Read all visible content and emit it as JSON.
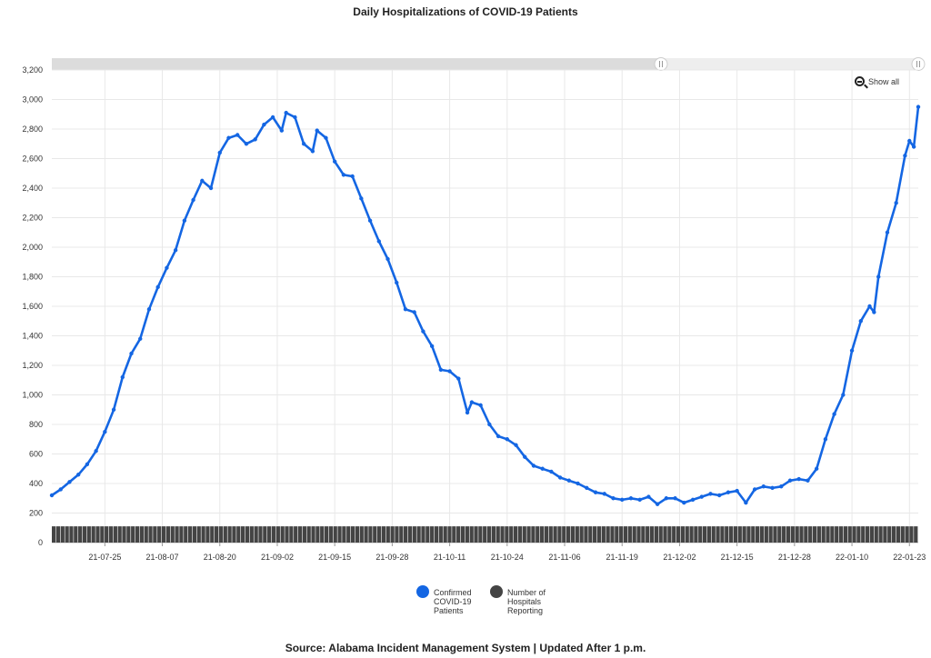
{
  "title": "Daily Hospitalizations of COVID-19 Patients",
  "source": "Source: Alabama Incident Management System | Updated After 1 p.m.",
  "show_all_label": "Show all",
  "colors": {
    "confirmed": "#1466e3",
    "hospitals": "#444444",
    "grid": "#e8e8e8",
    "scrollbar": "#dcdcdc"
  },
  "chart_data": {
    "type": "line",
    "x_start": "2021-07-13",
    "x_end": "2022-01-25",
    "ylim": [
      0,
      3200
    ],
    "y_ticks": [
      "0",
      "200",
      "400",
      "600",
      "800",
      "1,000",
      "1,200",
      "1,400",
      "1,600",
      "1,800",
      "2,000",
      "2,200",
      "2,400",
      "2,600",
      "2,800",
      "3,000",
      "3,200"
    ],
    "x_ticks": [
      "21-07-25",
      "21-08-07",
      "21-08-20",
      "21-09-02",
      "21-09-15",
      "21-09-28",
      "21-10-11",
      "21-10-24",
      "21-11-06",
      "21-11-19",
      "21-12-02",
      "21-12-15",
      "21-12-28",
      "22-01-10",
      "22-01-23"
    ],
    "grid": true,
    "legend_position": "bottom",
    "series": [
      {
        "name": "Confirmed COVID-19 Patients",
        "kind": "line",
        "points": [
          [
            "2021-07-13",
            320
          ],
          [
            "2021-07-15",
            360
          ],
          [
            "2021-07-17",
            410
          ],
          [
            "2021-07-19",
            460
          ],
          [
            "2021-07-21",
            530
          ],
          [
            "2021-07-23",
            620
          ],
          [
            "2021-07-25",
            750
          ],
          [
            "2021-07-27",
            900
          ],
          [
            "2021-07-29",
            1120
          ],
          [
            "2021-07-31",
            1280
          ],
          [
            "2021-08-02",
            1380
          ],
          [
            "2021-08-04",
            1580
          ],
          [
            "2021-08-06",
            1730
          ],
          [
            "2021-08-08",
            1860
          ],
          [
            "2021-08-10",
            1980
          ],
          [
            "2021-08-12",
            2180
          ],
          [
            "2021-08-14",
            2320
          ],
          [
            "2021-08-16",
            2450
          ],
          [
            "2021-08-18",
            2400
          ],
          [
            "2021-08-20",
            2640
          ],
          [
            "2021-08-22",
            2740
          ],
          [
            "2021-08-24",
            2760
          ],
          [
            "2021-08-26",
            2700
          ],
          [
            "2021-08-28",
            2730
          ],
          [
            "2021-08-30",
            2830
          ],
          [
            "2021-09-01",
            2880
          ],
          [
            "2021-09-03",
            2790
          ],
          [
            "2021-09-04",
            2910
          ],
          [
            "2021-09-06",
            2880
          ],
          [
            "2021-09-08",
            2700
          ],
          [
            "2021-09-10",
            2650
          ],
          [
            "2021-09-11",
            2790
          ],
          [
            "2021-09-13",
            2740
          ],
          [
            "2021-09-15",
            2580
          ],
          [
            "2021-09-17",
            2490
          ],
          [
            "2021-09-19",
            2480
          ],
          [
            "2021-09-21",
            2330
          ],
          [
            "2021-09-23",
            2180
          ],
          [
            "2021-09-25",
            2040
          ],
          [
            "2021-09-27",
            1920
          ],
          [
            "2021-09-29",
            1760
          ],
          [
            "2021-10-01",
            1580
          ],
          [
            "2021-10-03",
            1560
          ],
          [
            "2021-10-05",
            1430
          ],
          [
            "2021-10-07",
            1330
          ],
          [
            "2021-10-09",
            1170
          ],
          [
            "2021-10-11",
            1160
          ],
          [
            "2021-10-13",
            1110
          ],
          [
            "2021-10-15",
            880
          ],
          [
            "2021-10-16",
            950
          ],
          [
            "2021-10-18",
            930
          ],
          [
            "2021-10-20",
            800
          ],
          [
            "2021-10-22",
            720
          ],
          [
            "2021-10-24",
            700
          ],
          [
            "2021-10-26",
            660
          ],
          [
            "2021-10-28",
            580
          ],
          [
            "2021-10-30",
            520
          ],
          [
            "2021-11-01",
            500
          ],
          [
            "2021-11-03",
            480
          ],
          [
            "2021-11-05",
            440
          ],
          [
            "2021-11-07",
            420
          ],
          [
            "2021-11-09",
            400
          ],
          [
            "2021-11-11",
            370
          ],
          [
            "2021-11-13",
            340
          ],
          [
            "2021-11-15",
            330
          ],
          [
            "2021-11-17",
            300
          ],
          [
            "2021-11-19",
            290
          ],
          [
            "2021-11-21",
            300
          ],
          [
            "2021-11-23",
            290
          ],
          [
            "2021-11-25",
            310
          ],
          [
            "2021-11-27",
            260
          ],
          [
            "2021-11-29",
            300
          ],
          [
            "2021-12-01",
            300
          ],
          [
            "2021-12-03",
            270
          ],
          [
            "2021-12-05",
            290
          ],
          [
            "2021-12-07",
            310
          ],
          [
            "2021-12-09",
            330
          ],
          [
            "2021-12-11",
            320
          ],
          [
            "2021-12-13",
            340
          ],
          [
            "2021-12-15",
            350
          ],
          [
            "2021-12-17",
            270
          ],
          [
            "2021-12-19",
            360
          ],
          [
            "2021-12-21",
            380
          ],
          [
            "2021-12-23",
            370
          ],
          [
            "2021-12-25",
            380
          ],
          [
            "2021-12-27",
            420
          ],
          [
            "2021-12-29",
            430
          ],
          [
            "2021-12-31",
            420
          ],
          [
            "2022-01-02",
            500
          ],
          [
            "2022-01-04",
            700
          ],
          [
            "2022-01-06",
            870
          ],
          [
            "2022-01-08",
            1000
          ],
          [
            "2022-01-10",
            1300
          ],
          [
            "2022-01-12",
            1500
          ],
          [
            "2022-01-14",
            1600
          ],
          [
            "2022-01-15",
            1560
          ],
          [
            "2022-01-16",
            1800
          ],
          [
            "2022-01-18",
            2100
          ],
          [
            "2022-01-20",
            2300
          ],
          [
            "2022-01-22",
            2620
          ],
          [
            "2022-01-23",
            2720
          ],
          [
            "2022-01-24",
            2680
          ],
          [
            "2022-01-25",
            2950
          ]
        ]
      },
      {
        "name": "Number of Hospitals Reporting",
        "kind": "bar",
        "daily_value": 110
      }
    ],
    "legend_labels": [
      [
        "Confirmed",
        "COVID-19",
        "Patients"
      ],
      [
        "Number of",
        "Hospitals",
        "Reporting"
      ]
    ]
  }
}
